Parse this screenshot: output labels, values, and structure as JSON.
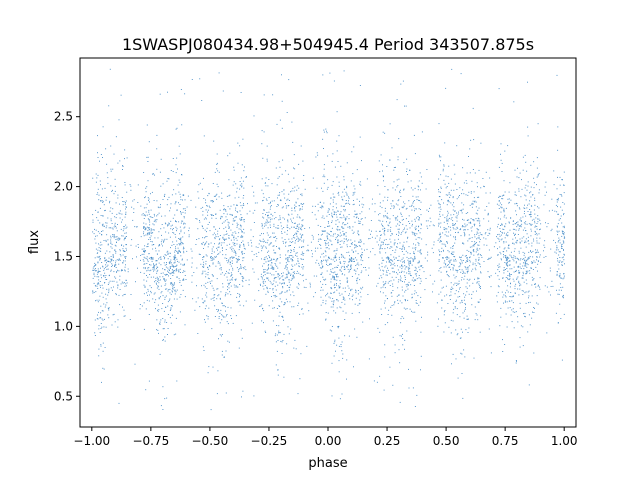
{
  "chart_data": {
    "type": "scatter",
    "title": "1SWASPJ080434.98+504945.4 Period 343507.875s",
    "xlabel": "phase",
    "ylabel": "flux",
    "xlim": [
      -1.05,
      1.05
    ],
    "ylim": [
      0.28,
      2.92
    ],
    "x_ticks": [
      -1.0,
      -0.75,
      -0.5,
      -0.25,
      0.0,
      0.25,
      0.5,
      0.75,
      1.0
    ],
    "x_tick_labels": [
      "−1.00",
      "−0.75",
      "−0.50",
      "−0.25",
      "0.00",
      "0.25",
      "0.50",
      "0.75",
      "1.00"
    ],
    "y_ticks": [
      0.5,
      1.0,
      1.5,
      2.0,
      2.5
    ],
    "y_tick_labels": [
      "0.5",
      "1.0",
      "1.5",
      "2.0",
      "2.5"
    ],
    "grid": false,
    "legend": "none",
    "point_color": "#3f88c5",
    "data_summary": {
      "x_range": [
        -1.0,
        1.0
      ],
      "dense_band_flux": [
        1.25,
        1.95
      ],
      "median_flux": 1.6,
      "flux_extremes": [
        0.4,
        2.85
      ],
      "dip_phases": [
        -0.96,
        -0.7,
        -0.45,
        -0.2,
        0.05,
        0.3,
        0.55,
        0.8
      ],
      "dip_flux_min": 0.9,
      "gap_phases": [
        -0.82,
        -0.57,
        -0.32,
        -0.07,
        0.18,
        0.43,
        0.68,
        0.93
      ]
    }
  }
}
